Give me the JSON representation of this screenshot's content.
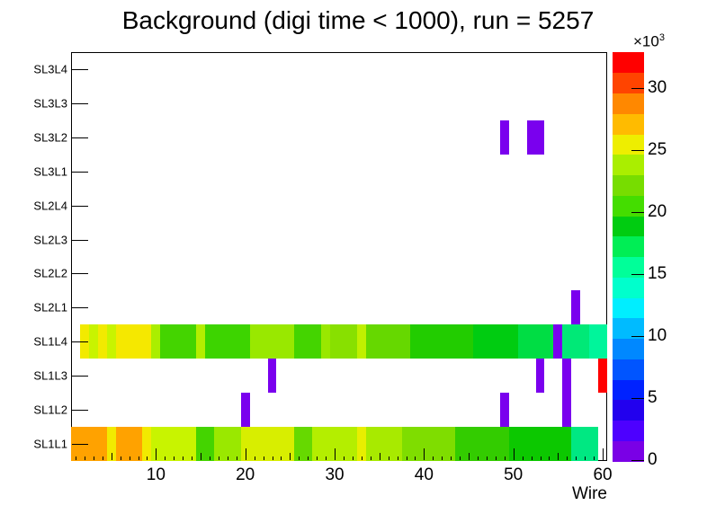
{
  "chart_data": {
    "type": "heatmap",
    "title": "Background (digi time < 1000), run = 5257",
    "xlabel": "Wire",
    "x_min": 0.5,
    "x_max": 60.5,
    "x_major_ticks": [
      10,
      20,
      30,
      40,
      50,
      60
    ],
    "grid": false,
    "rows_bottom_to_top": [
      "SL1L1",
      "SL1L2",
      "SL1L3",
      "SL1L4",
      "SL2L1",
      "SL2L2",
      "SL2L3",
      "SL2L4",
      "SL3L1",
      "SL3L2",
      "SL3L3",
      "SL3L4"
    ],
    "cells": {
      "SL1L1": [
        [
          1,
          4,
          "#ffa200"
        ],
        [
          5,
          5,
          "#f2ea00"
        ],
        [
          6,
          8,
          "#ffa200"
        ],
        [
          9,
          9,
          "#f2ea00"
        ],
        [
          10,
          14,
          "#c8f400"
        ],
        [
          15,
          16,
          "#44d400"
        ],
        [
          17,
          19,
          "#9ae800"
        ],
        [
          20,
          25,
          "#d8ee00"
        ],
        [
          26,
          27,
          "#66d900"
        ],
        [
          28,
          32,
          "#b4ee00"
        ],
        [
          33,
          33,
          "#e8ee00"
        ],
        [
          34,
          37,
          "#a8ea00"
        ],
        [
          38,
          43,
          "#7fdd00"
        ],
        [
          44,
          49,
          "#33cc00"
        ],
        [
          50,
          56,
          "#0cc800"
        ],
        [
          57,
          59,
          "#00e882"
        ]
      ],
      "SL1L2": [
        [
          20,
          20,
          "#7a00ee"
        ],
        [
          49,
          49,
          "#7a00ee"
        ],
        [
          56,
          56,
          "#7a00ee"
        ]
      ],
      "SL1L3": [
        [
          23,
          23,
          "#7a00ee"
        ],
        [
          53,
          53,
          "#7a00ee"
        ],
        [
          56,
          56,
          "#7a00ee"
        ],
        [
          60,
          60,
          "#ff0000"
        ]
      ],
      "SL1L4": [
        [
          2,
          2,
          "#f2ea00"
        ],
        [
          3,
          3,
          "#c8f400"
        ],
        [
          4,
          4,
          "#f2ea00"
        ],
        [
          5,
          5,
          "#c8f400"
        ],
        [
          6,
          9,
          "#f5e800"
        ],
        [
          10,
          10,
          "#aaee00"
        ],
        [
          11,
          14,
          "#44d400"
        ],
        [
          15,
          15,
          "#b4ee00"
        ],
        [
          16,
          20,
          "#3dd400"
        ],
        [
          21,
          25,
          "#99e800"
        ],
        [
          26,
          28,
          "#44d400"
        ],
        [
          29,
          29,
          "#99e800"
        ],
        [
          30,
          32,
          "#88e000"
        ],
        [
          33,
          33,
          "#c0f000"
        ],
        [
          34,
          38,
          "#66d800"
        ],
        [
          39,
          45,
          "#22cc00"
        ],
        [
          46,
          50,
          "#00cc11"
        ],
        [
          51,
          54,
          "#00dd44"
        ],
        [
          55,
          55,
          "#7a00ee"
        ],
        [
          56,
          58,
          "#00e977"
        ],
        [
          59,
          60,
          "#00f59b"
        ]
      ],
      "SL2L1": [
        [
          57,
          57,
          "#7a00ee"
        ]
      ],
      "SL2L2": [],
      "SL2L3": [],
      "SL2L4": [],
      "SL3L1": [],
      "SL3L2": [
        [
          49,
          49,
          "#7a00ee"
        ],
        [
          52,
          53,
          "#7a00ee"
        ]
      ],
      "SL3L3": [],
      "SL3L4": []
    },
    "colorbar": {
      "z_min": 0,
      "z_max": 33,
      "tick_values": [
        0,
        5,
        10,
        15,
        20,
        25,
        30
      ],
      "multiplier_base": "×10",
      "multiplier_exp": "3",
      "colors_bottom_to_top": [
        "#7a00e6",
        "#4d00ff",
        "#2200ee",
        "#0022ff",
        "#0055ff",
        "#0088ff",
        "#00bbff",
        "#00eeff",
        "#00ffcc",
        "#00ff99",
        "#00ee55",
        "#00cc11",
        "#44dd00",
        "#77dd00",
        "#aaee00",
        "#eeee00",
        "#ffbb00",
        "#ff8800",
        "#ff4400",
        "#ff0000"
      ]
    }
  },
  "colors": {
    "frame": "#000000",
    "background": "#ffffff"
  }
}
